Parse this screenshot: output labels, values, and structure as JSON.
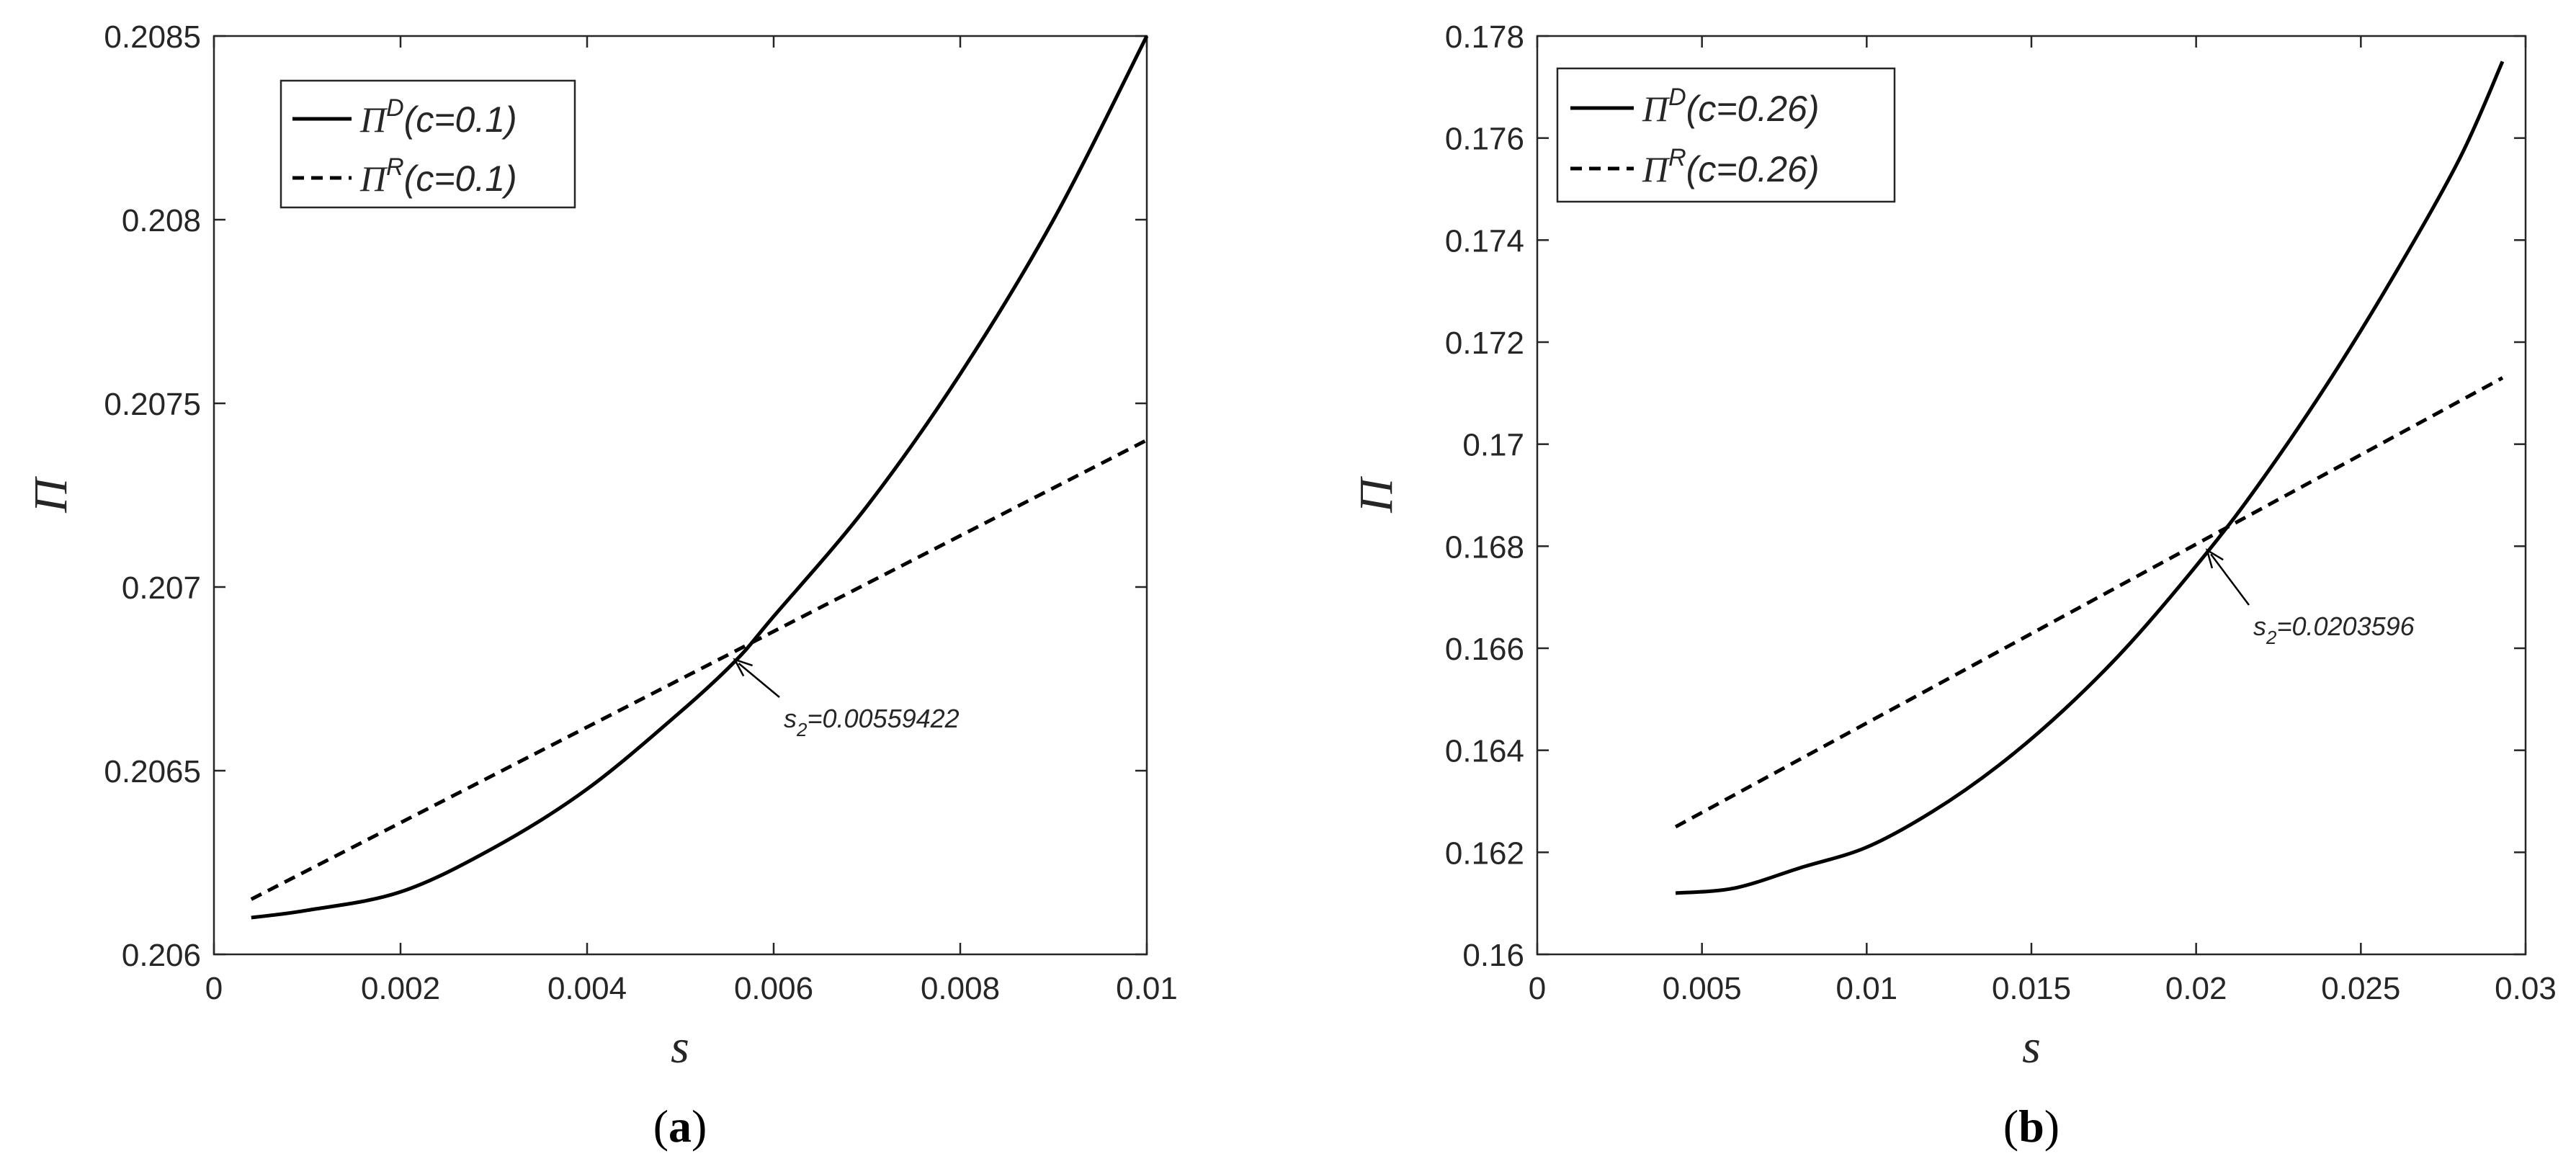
{
  "chart_data": [
    {
      "type": "line",
      "panel_label": "a",
      "xlabel": "s",
      "ylabel": "Π",
      "xlim": [
        0,
        0.01
      ],
      "ylim": [
        0.206,
        0.2085
      ],
      "xticks": [
        "0",
        "0.002",
        "0.004",
        "0.006",
        "0.008",
        "0.01"
      ],
      "yticks": [
        "0.206",
        "0.2065",
        "0.207",
        "0.2075",
        "0.208",
        "0.2085"
      ],
      "legend_position": "top-left",
      "series": [
        {
          "name_symbol": "Π",
          "name_superscript": "D",
          "name_param": "(c=0.1)",
          "style": "solid",
          "x": [
            0.0004,
            0.001,
            0.002,
            0.003,
            0.004,
            0.005,
            0.00559422,
            0.006,
            0.007,
            0.008,
            0.009,
            0.01
          ],
          "y": [
            0.2061,
            0.20612,
            0.20617,
            0.20629,
            0.20645,
            0.20666,
            0.2068,
            0.20692,
            0.20722,
            0.20758,
            0.208,
            0.2085
          ]
        },
        {
          "name_symbol": "Π",
          "name_superscript": "R",
          "name_param": "(c=0.1)",
          "style": "dashed",
          "x": [
            0.0004,
            0.01
          ],
          "y": [
            0.20615,
            0.2074
          ]
        }
      ],
      "annotation": {
        "prefix": "s",
        "subscript": "2",
        "value_text": "=0.00559422",
        "x": 0.00559422,
        "y": 0.2068
      }
    },
    {
      "type": "line",
      "panel_label": "b",
      "xlabel": "s",
      "ylabel": "Π",
      "xlim": [
        0,
        0.03
      ],
      "ylim": [
        0.16,
        0.178
      ],
      "xticks": [
        "0",
        "0.005",
        "0.01",
        "0.015",
        "0.02",
        "0.025",
        "0.03"
      ],
      "yticks": [
        "0.16",
        "0.162",
        "0.164",
        "0.166",
        "0.168",
        "0.17",
        "0.172",
        "0.174",
        "0.176",
        "0.178"
      ],
      "legend_position": "top-left",
      "series": [
        {
          "name_symbol": "Π",
          "name_superscript": "D",
          "name_param": "(c=0.26)",
          "style": "solid",
          "x": [
            0.0042,
            0.006,
            0.008,
            0.01,
            0.012,
            0.014,
            0.016,
            0.018,
            0.0203596,
            0.022,
            0.024,
            0.026,
            0.028,
            0.0293
          ],
          "y": [
            0.1612,
            0.1613,
            0.1617,
            0.1621,
            0.1628,
            0.1637,
            0.1648,
            0.1661,
            0.1679,
            0.1693,
            0.1712,
            0.1733,
            0.1756,
            0.1775
          ]
        },
        {
          "name_symbol": "Π",
          "name_superscript": "R",
          "name_param": "(c=0.26)",
          "style": "dashed",
          "x": [
            0.0042,
            0.0293
          ],
          "y": [
            0.1625,
            0.1713
          ]
        }
      ],
      "annotation": {
        "prefix": "s",
        "subscript": "2",
        "value_text": "=0.0203596",
        "x": 0.0203596,
        "y": 0.1679
      }
    }
  ]
}
